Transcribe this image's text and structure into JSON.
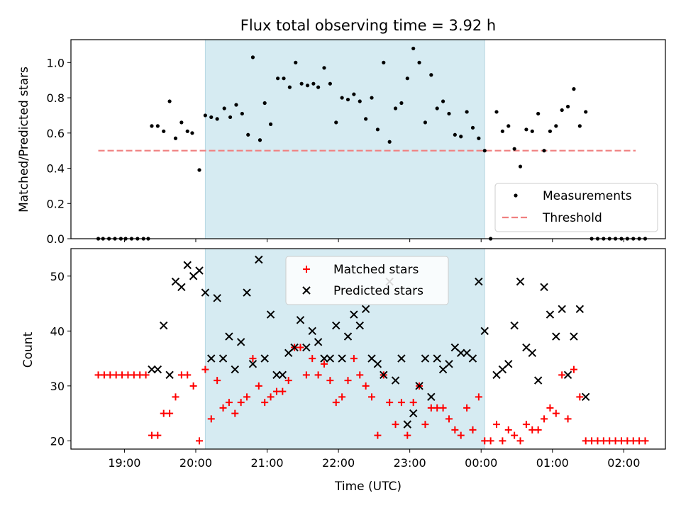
{
  "chart_data": [
    {
      "type": "scatter",
      "title": "Flux total observing time = 3.92 h",
      "xlabel": "",
      "ylabel": "Matched/Predicted stars",
      "xlim": [
        "18:15",
        "02:35"
      ],
      "ylim": [
        0,
        1.13
      ],
      "yticks": [
        "0.0",
        "0.2",
        "0.4",
        "0.6",
        "0.8",
        "1.0"
      ],
      "shaded_region": [
        "20:08",
        "00:03"
      ],
      "legend": {
        "position": "lower-right",
        "entries": [
          "Measurements",
          "Threshold"
        ]
      },
      "threshold": {
        "name": "Threshold",
        "value": 0.5,
        "x_range": [
          "18:38",
          "02:10"
        ],
        "color": "#f08080"
      },
      "series": [
        {
          "name": "Measurements",
          "color": "#000000",
          "points": [
            [
              "18:38",
              0
            ],
            [
              "18:42",
              0
            ],
            [
              "18:47",
              0
            ],
            [
              "18:52",
              0
            ],
            [
              "18:57",
              0
            ],
            [
              "19:01",
              0
            ],
            [
              "19:06",
              0
            ],
            [
              "19:11",
              0
            ],
            [
              "19:16",
              0
            ],
            [
              "19:20",
              0
            ],
            [
              "19:23",
              0.64
            ],
            [
              "19:28",
              0.64
            ],
            [
              "19:33",
              0.61
            ],
            [
              "19:38",
              0.78
            ],
            [
              "19:43",
              0.57
            ],
            [
              "19:48",
              0.66
            ],
            [
              "19:53",
              0.61
            ],
            [
              "19:57",
              0.6
            ],
            [
              "20:03",
              0.39
            ],
            [
              "20:08",
              0.7
            ],
            [
              "20:13",
              0.69
            ],
            [
              "20:18",
              0.68
            ],
            [
              "20:24",
              0.74
            ],
            [
              "20:29",
              0.69
            ],
            [
              "20:34",
              0.76
            ],
            [
              "20:39",
              0.71
            ],
            [
              "20:44",
              0.59
            ],
            [
              "20:48",
              1.03
            ],
            [
              "20:54",
              0.56
            ],
            [
              "20:58",
              0.77
            ],
            [
              "21:03",
              0.65
            ],
            [
              "21:09",
              0.91
            ],
            [
              "21:14",
              0.91
            ],
            [
              "21:19",
              0.86
            ],
            [
              "21:24",
              1.0
            ],
            [
              "21:29",
              0.88
            ],
            [
              "21:34",
              0.87
            ],
            [
              "21:39",
              0.88
            ],
            [
              "21:43",
              0.86
            ],
            [
              "21:48",
              0.97
            ],
            [
              "21:53",
              0.88
            ],
            [
              "21:58",
              0.66
            ],
            [
              "22:03",
              0.8
            ],
            [
              "22:08",
              0.79
            ],
            [
              "22:13",
              0.82
            ],
            [
              "22:18",
              0.78
            ],
            [
              "22:23",
              0.68
            ],
            [
              "22:28",
              0.8
            ],
            [
              "22:33",
              0.62
            ],
            [
              "22:38",
              1.0
            ],
            [
              "22:43",
              0.55
            ],
            [
              "22:48",
              0.74
            ],
            [
              "22:53",
              0.77
            ],
            [
              "22:58",
              0.91
            ],
            [
              "23:03",
              1.08
            ],
            [
              "23:08",
              1.0
            ],
            [
              "23:13",
              0.66
            ],
            [
              "23:18",
              0.93
            ],
            [
              "23:23",
              0.74
            ],
            [
              "23:28",
              0.78
            ],
            [
              "23:33",
              0.71
            ],
            [
              "23:38",
              0.59
            ],
            [
              "23:43",
              0.58
            ],
            [
              "23:48",
              0.72
            ],
            [
              "23:53",
              0.63
            ],
            [
              "23:58",
              0.57
            ],
            [
              "00:03",
              0.5
            ],
            [
              "00:08",
              0
            ],
            [
              "00:13",
              0.72
            ],
            [
              "00:18",
              0.61
            ],
            [
              "00:23",
              0.64
            ],
            [
              "00:28",
              0.51
            ],
            [
              "00:33",
              0.41
            ],
            [
              "00:38",
              0.62
            ],
            [
              "00:43",
              0.61
            ],
            [
              "00:48",
              0.71
            ],
            [
              "00:53",
              0.5
            ],
            [
              "00:58",
              0.61
            ],
            [
              "01:03",
              0.64
            ],
            [
              "01:08",
              0.73
            ],
            [
              "01:13",
              0.75
            ],
            [
              "01:18",
              0.85
            ],
            [
              "01:23",
              0.64
            ],
            [
              "01:28",
              0.72
            ],
            [
              "01:33",
              0
            ],
            [
              "01:38",
              0
            ],
            [
              "01:43",
              0
            ],
            [
              "01:48",
              0
            ],
            [
              "01:53",
              0
            ],
            [
              "01:58",
              0
            ],
            [
              "02:03",
              0
            ],
            [
              "02:08",
              0
            ],
            [
              "02:13",
              0
            ],
            [
              "02:18",
              0
            ]
          ]
        }
      ]
    },
    {
      "type": "scatter",
      "title": "",
      "xlabel": "Time (UTC)",
      "ylabel": "Count",
      "xlim": [
        "18:15",
        "02:35"
      ],
      "ylim": [
        18.5,
        55.0
      ],
      "yticks": [
        "20",
        "30",
        "40",
        "50"
      ],
      "xticks": [
        "19:00",
        "20:00",
        "21:00",
        "22:00",
        "23:00",
        "00:00",
        "01:00",
        "02:00"
      ],
      "shaded_region": [
        "20:08",
        "00:03"
      ],
      "legend": {
        "position": "top-center",
        "entries": [
          "Matched stars",
          "Predicted stars"
        ]
      },
      "series": [
        {
          "name": "Matched stars",
          "marker": "plus",
          "color": "#ff0000",
          "points": [
            [
              "18:38",
              32
            ],
            [
              "18:43",
              32
            ],
            [
              "18:48",
              32
            ],
            [
              "18:53",
              32
            ],
            [
              "18:58",
              32
            ],
            [
              "19:03",
              32
            ],
            [
              "19:08",
              32
            ],
            [
              "19:13",
              32
            ],
            [
              "19:18",
              32
            ],
            [
              "19:23",
              21
            ],
            [
              "19:28",
              21
            ],
            [
              "19:33",
              25
            ],
            [
              "19:38",
              25
            ],
            [
              "19:43",
              28
            ],
            [
              "19:48",
              32
            ],
            [
              "19:53",
              32
            ],
            [
              "19:58",
              30
            ],
            [
              "20:03",
              20
            ],
            [
              "20:08",
              33
            ],
            [
              "20:13",
              24
            ],
            [
              "20:18",
              31
            ],
            [
              "20:23",
              26
            ],
            [
              "20:28",
              27
            ],
            [
              "20:33",
              25
            ],
            [
              "20:38",
              27
            ],
            [
              "20:43",
              28
            ],
            [
              "20:48",
              35
            ],
            [
              "20:53",
              30
            ],
            [
              "20:58",
              27
            ],
            [
              "21:03",
              28
            ],
            [
              "21:08",
              29
            ],
            [
              "21:13",
              29
            ],
            [
              "21:18",
              31
            ],
            [
              "21:23",
              37
            ],
            [
              "21:28",
              37
            ],
            [
              "21:33",
              32
            ],
            [
              "21:38",
              35
            ],
            [
              "21:43",
              32
            ],
            [
              "21:48",
              34
            ],
            [
              "21:53",
              31
            ],
            [
              "21:58",
              27
            ],
            [
              "22:03",
              28
            ],
            [
              "22:08",
              31
            ],
            [
              "22:13",
              35
            ],
            [
              "22:18",
              32
            ],
            [
              "22:23",
              30
            ],
            [
              "22:28",
              28
            ],
            [
              "22:33",
              21
            ],
            [
              "22:38",
              32
            ],
            [
              "22:43",
              27
            ],
            [
              "22:48",
              23
            ],
            [
              "22:53",
              27
            ],
            [
              "22:58",
              21
            ],
            [
              "23:03",
              27
            ],
            [
              "23:08",
              30
            ],
            [
              "23:13",
              23
            ],
            [
              "23:18",
              26
            ],
            [
              "23:23",
              26
            ],
            [
              "23:28",
              26
            ],
            [
              "23:33",
              24
            ],
            [
              "23:38",
              22
            ],
            [
              "23:43",
              21
            ],
            [
              "23:48",
              26
            ],
            [
              "23:53",
              22
            ],
            [
              "23:58",
              28
            ],
            [
              "00:03",
              20
            ],
            [
              "00:08",
              20
            ],
            [
              "00:13",
              23
            ],
            [
              "00:18",
              20
            ],
            [
              "00:23",
              22
            ],
            [
              "00:28",
              21
            ],
            [
              "00:33",
              20
            ],
            [
              "00:38",
              23
            ],
            [
              "00:43",
              22
            ],
            [
              "00:48",
              22
            ],
            [
              "00:53",
              24
            ],
            [
              "00:58",
              26
            ],
            [
              "01:03",
              25
            ],
            [
              "01:08",
              32
            ],
            [
              "01:13",
              24
            ],
            [
              "01:18",
              33
            ],
            [
              "01:23",
              28
            ],
            [
              "01:28",
              20
            ],
            [
              "01:33",
              20
            ],
            [
              "01:38",
              20
            ],
            [
              "01:43",
              20
            ],
            [
              "01:48",
              20
            ],
            [
              "01:53",
              20
            ],
            [
              "01:58",
              20
            ],
            [
              "02:03",
              20
            ],
            [
              "02:08",
              20
            ],
            [
              "02:13",
              20
            ],
            [
              "02:18",
              20
            ]
          ]
        },
        {
          "name": "Predicted stars",
          "marker": "x",
          "color": "#000000",
          "points": [
            [
              "19:23",
              33
            ],
            [
              "19:28",
              33
            ],
            [
              "19:33",
              41
            ],
            [
              "19:38",
              32
            ],
            [
              "19:43",
              49
            ],
            [
              "19:48",
              48
            ],
            [
              "19:53",
              52
            ],
            [
              "19:58",
              50
            ],
            [
              "20:03",
              51
            ],
            [
              "20:08",
              47
            ],
            [
              "20:13",
              35
            ],
            [
              "20:18",
              46
            ],
            [
              "20:23",
              35
            ],
            [
              "20:28",
              39
            ],
            [
              "20:33",
              33
            ],
            [
              "20:38",
              38
            ],
            [
              "20:43",
              47
            ],
            [
              "20:48",
              34
            ],
            [
              "20:53",
              53
            ],
            [
              "20:58",
              35
            ],
            [
              "21:03",
              43
            ],
            [
              "21:08",
              32
            ],
            [
              "21:13",
              32
            ],
            [
              "21:18",
              36
            ],
            [
              "21:23",
              37
            ],
            [
              "21:28",
              42
            ],
            [
              "21:33",
              37
            ],
            [
              "21:38",
              40
            ],
            [
              "21:43",
              38
            ],
            [
              "21:48",
              35
            ],
            [
              "21:53",
              35
            ],
            [
              "21:58",
              41
            ],
            [
              "22:03",
              35
            ],
            [
              "22:08",
              39
            ],
            [
              "22:13",
              43
            ],
            [
              "22:18",
              41
            ],
            [
              "22:23",
              44
            ],
            [
              "22:28",
              35
            ],
            [
              "22:33",
              34
            ],
            [
              "22:38",
              32
            ],
            [
              "22:43",
              49
            ],
            [
              "22:48",
              31
            ],
            [
              "22:53",
              35
            ],
            [
              "22:58",
              23
            ],
            [
              "23:03",
              25
            ],
            [
              "23:08",
              30
            ],
            [
              "23:13",
              35
            ],
            [
              "23:18",
              28
            ],
            [
              "23:23",
              35
            ],
            [
              "23:28",
              33
            ],
            [
              "23:33",
              34
            ],
            [
              "23:38",
              37
            ],
            [
              "23:43",
              36
            ],
            [
              "23:48",
              36
            ],
            [
              "23:53",
              35
            ],
            [
              "23:58",
              49
            ],
            [
              "00:03",
              40
            ],
            [
              "00:13",
              32
            ],
            [
              "00:18",
              33
            ],
            [
              "00:23",
              34
            ],
            [
              "00:28",
              41
            ],
            [
              "00:33",
              49
            ],
            [
              "00:38",
              37
            ],
            [
              "00:43",
              36
            ],
            [
              "00:48",
              31
            ],
            [
              "00:53",
              48
            ],
            [
              "00:58",
              43
            ],
            [
              "01:03",
              39
            ],
            [
              "01:08",
              44
            ],
            [
              "01:13",
              32
            ],
            [
              "01:18",
              39
            ],
            [
              "01:23",
              44
            ],
            [
              "01:28",
              28
            ]
          ]
        }
      ]
    }
  ]
}
